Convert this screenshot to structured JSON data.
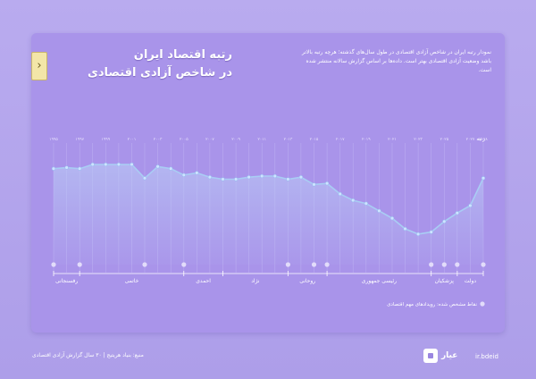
{
  "header": {
    "title_line1": "رتبه اقتصاد ایران",
    "title_line2": "در شاخص آزادی اقتصادی",
    "description": "نمودار رتبه ایران در شاخص آزادی اقتصادی در طول سال‌های گذشته؛ هرچه رتبه بالاتر باشد وضعیت آزادی اقتصادی بهتر است. داده‌ها بر اساس گزارش سالانه منتشر شده است."
  },
  "footer": {
    "source": "منبع: بنیاد هریتیج | ۳۰ سال گزارش آزادی اقتصادی",
    "brand_name": "عیار",
    "brand_sub": "ir.bdeid"
  },
  "colors": {
    "line": "#a9cdf4",
    "point": "#cfe3ff",
    "area_top": "#bcd2f7",
    "grid": "#c2b6f3",
    "marker": "#e2dcfa"
  },
  "chart_data": {
    "type": "line",
    "title": "",
    "xlabel": "",
    "ylabel": "",
    "y_axis_label": "رتبه",
    "x_labels": [
      "۱۹۹۵",
      "۱۹۹۶",
      "۱۹۹۷",
      "۱۹۹۸",
      "۱۹۹۹",
      "۲۰۰۰",
      "۲۰۰۱",
      "۲۰۰۲",
      "۲۰۰۳",
      "۲۰۰۴",
      "۲۰۰۵",
      "۲۰۰۶",
      "۲۰۰۷",
      "۲۰۰۸",
      "۲۰۰۹",
      "۲۰۱۰",
      "۲۰۱۱",
      "۲۰۱۲",
      "۲۰۱۳",
      "۲۰۱۴",
      "۲۰۱۵",
      "۲۰۱۶",
      "۲۰۱۷",
      "۲۰۱۸",
      "۲۰۱۹",
      "۲۰۲۰",
      "۲۰۲۱",
      "۲۰۲۲",
      "۲۰۲۳",
      "۲۰۲۴",
      "۲۰۲۵",
      "۲۰۲۶",
      "۲۰۲۷",
      "۲۰۲۸"
    ],
    "x": [
      1995,
      1996,
      1997,
      1998,
      1999,
      2000,
      2001,
      2002,
      2003,
      2004,
      2005,
      2006,
      2007,
      2008,
      2009,
      2010,
      2011,
      2012,
      2013,
      2014,
      2015,
      2016,
      2017,
      2018,
      2019,
      2020,
      2021,
      2022,
      2023,
      2024,
      2025,
      2026,
      2027,
      2028
    ],
    "values": [
      146,
      145,
      146,
      142,
      142,
      142,
      142,
      155,
      144,
      146,
      152,
      150,
      154,
      156,
      156,
      154,
      153,
      153,
      156,
      154,
      161,
      160,
      170,
      176,
      179,
      186,
      193,
      203,
      208,
      206,
      196,
      188,
      181,
      155
    ],
    "ylim": [
      120,
      225
    ],
    "grid": true,
    "event_markers": [
      1995,
      1997,
      2002,
      2005,
      2013,
      2015,
      2016,
      2024,
      2025,
      2026,
      2028
    ],
    "periods": [
      {
        "label": "رفسنجانی",
        "start": 1995,
        "end": 1997
      },
      {
        "label": "خاتمی",
        "start": 1997,
        "end": 2005
      },
      {
        "label": "احمدی",
        "start": 2005,
        "end": 2008
      },
      {
        "label": "نژاد",
        "start": 2008,
        "end": 2013
      },
      {
        "label": "روحانی",
        "start": 2013,
        "end": 2016
      },
      {
        "label": "رئیسی جمهوری",
        "start": 2016,
        "end": 2024
      },
      {
        "label": "پزشکیان",
        "start": 2024,
        "end": 2026
      },
      {
        "label": "دولت",
        "start": 2026,
        "end": 2028
      }
    ],
    "legend_label": "نقاط مشخص شده: رویدادهای مهم اقتصادی"
  }
}
